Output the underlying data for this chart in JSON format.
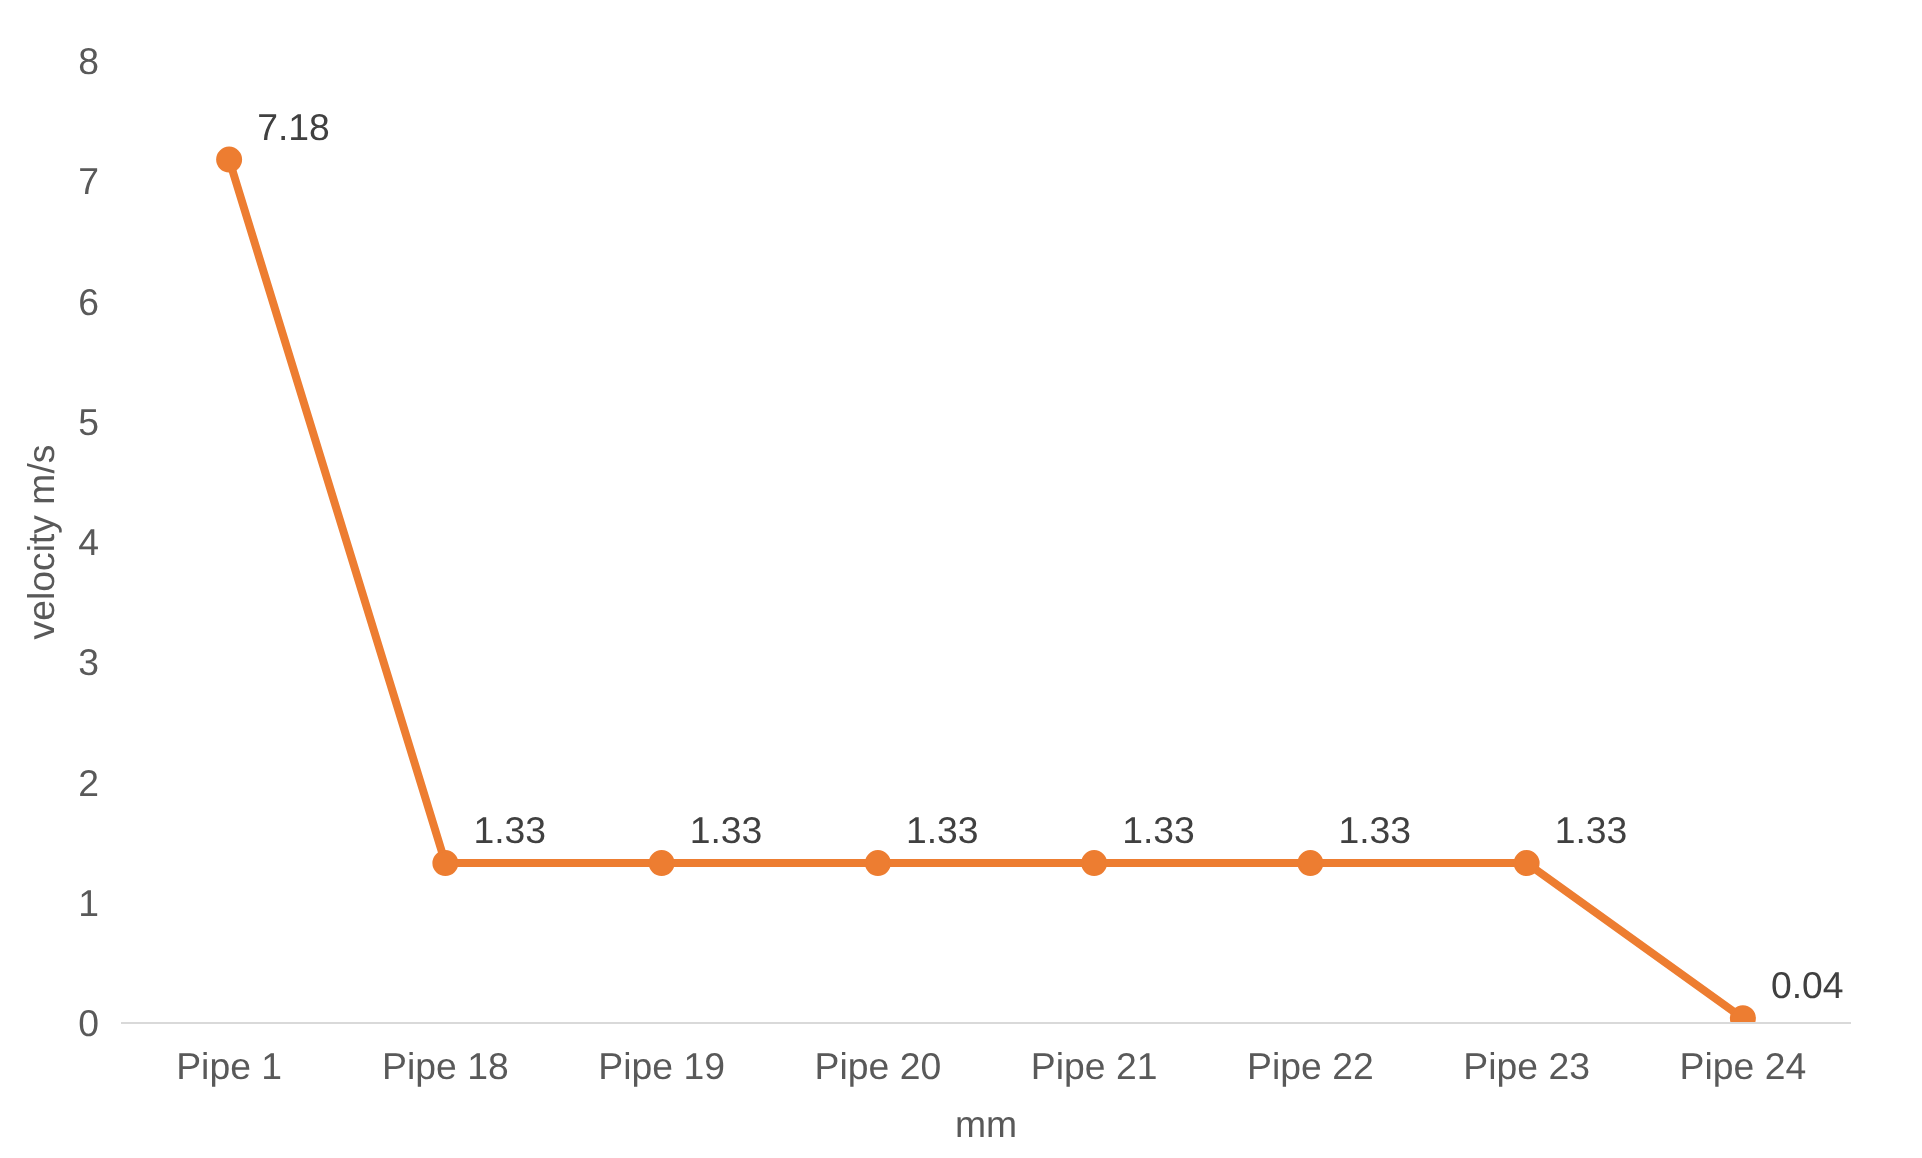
{
  "chart_data": {
    "type": "line",
    "xlabel": "mm",
    "ylabel": "velocity m/s",
    "categories": [
      "Pipe 1",
      "Pipe 18",
      "Pipe 19",
      "Pipe 20",
      "Pipe 21",
      "Pipe 22",
      "Pipe 23",
      "Pipe 24"
    ],
    "series": [
      {
        "color": "#ed7d31",
        "values": [
          7.18,
          1.33,
          1.33,
          1.33,
          1.33,
          1.33,
          1.33,
          0.04
        ]
      }
    ],
    "ylim": [
      0,
      8
    ],
    "yticks": [
      0,
      1,
      2,
      3,
      4,
      5,
      6,
      7,
      8
    ],
    "grid": false,
    "marker": "circle",
    "line_style": "solid",
    "data_labels": true
  }
}
